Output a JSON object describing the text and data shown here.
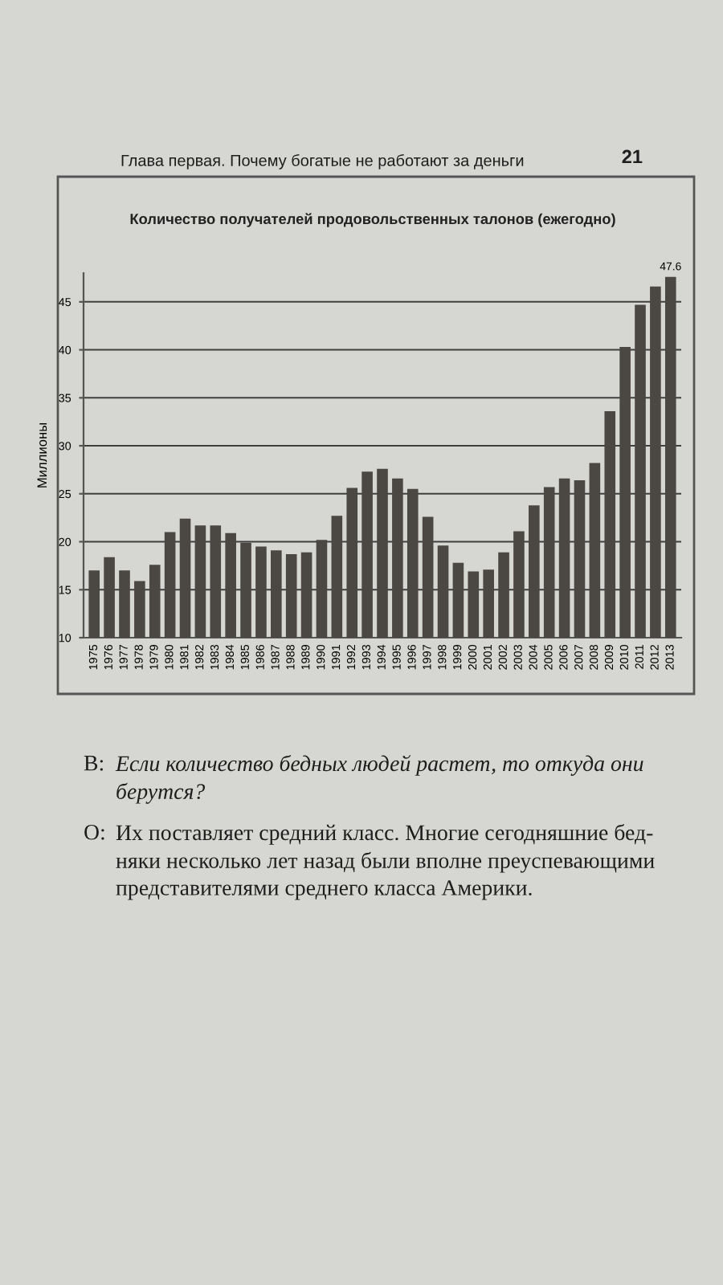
{
  "chart_data": {
    "type": "bar",
    "title": "Количество получателей продовольственных талонов (ежегодно)",
    "ylabel": "Миллионы",
    "categories": [
      "1975",
      "1976",
      "1977",
      "1978",
      "1979",
      "1980",
      "1981",
      "1982",
      "1983",
      "1984",
      "1985",
      "1986",
      "1987",
      "1988",
      "1989",
      "1990",
      "1991",
      "1992",
      "1993",
      "1994",
      "1995",
      "1996",
      "1997",
      "1998",
      "1999",
      "2000",
      "2001",
      "2002",
      "2003",
      "2004",
      "2005",
      "2006",
      "2007",
      "2008",
      "2009",
      "2010",
      "2011",
      "2012",
      "2013"
    ],
    "values": [
      17.0,
      18.4,
      17.0,
      15.9,
      17.6,
      21.0,
      22.4,
      21.7,
      21.7,
      20.9,
      19.9,
      19.5,
      19.1,
      18.7,
      18.9,
      20.2,
      22.7,
      25.6,
      27.3,
      27.6,
      26.6,
      25.5,
      22.6,
      19.6,
      17.8,
      16.9,
      17.1,
      18.9,
      21.1,
      23.8,
      25.7,
      26.6,
      26.4,
      28.2,
      33.6,
      40.3,
      44.7,
      46.6,
      47.6
    ],
    "color": "#4b4743",
    "value_labels": [
      null,
      null,
      null,
      null,
      null,
      null,
      null,
      null,
      null,
      null,
      null,
      null,
      null,
      null,
      null,
      null,
      null,
      null,
      null,
      null,
      null,
      null,
      null,
      null,
      null,
      null,
      null,
      null,
      null,
      null,
      null,
      null,
      null,
      null,
      null,
      null,
      null,
      null,
      "47.6"
    ],
    "ylim": [
      10,
      48
    ],
    "yticks": [
      10,
      15,
      20,
      25,
      30,
      35,
      40,
      45
    ],
    "grid": "y",
    "annotations": [
      "Глава первая. Почему богатые не работают за деньги",
      "21",
      "В:",
      "Если количество бедных людей растет, то откуда они\nберутся?",
      "О:",
      "Их поставляет средний класс. Многие сегодняшние бед-\nняки несколько лет назад были вполне преуспевающими\nпредставителями среднего класса Америки."
    ]
  }
}
